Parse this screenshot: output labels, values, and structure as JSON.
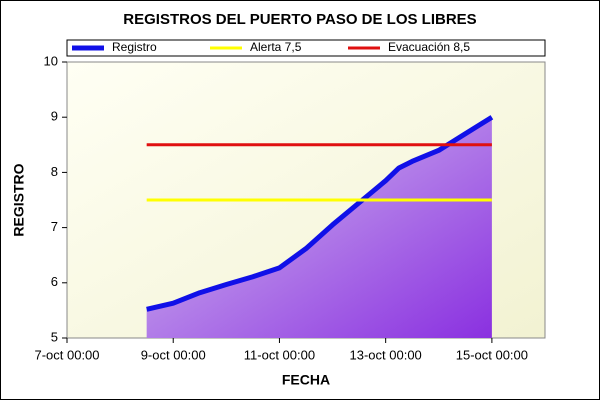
{
  "chart_data": {
    "type": "area-line",
    "title": "REGISTROS DEL PUERTO PASO DE LOS LIBRES",
    "x_label": "FECHA",
    "y_label": "REGISTRO",
    "x": [
      8.5,
      9,
      9.5,
      10,
      10.5,
      11,
      11.5,
      12,
      12.5,
      13,
      13.25,
      13.5,
      14,
      14.5,
      15
    ],
    "series": [
      {
        "name": "Registro",
        "color": "#1010e8",
        "fill": true,
        "values": [
          5.52,
          5.63,
          5.82,
          5.97,
          6.11,
          6.27,
          6.62,
          7.05,
          7.45,
          7.85,
          8.08,
          8.2,
          8.4,
          8.7,
          9.0
        ]
      },
      {
        "name": "Alerta 7,5",
        "color": "#ffff00",
        "values": [
          7.5,
          7.5,
          7.5,
          7.5,
          7.5,
          7.5,
          7.5,
          7.5,
          7.5,
          7.5,
          7.5,
          7.5,
          7.5,
          7.5,
          7.5
        ]
      },
      {
        "name": "Evacuación 8,5",
        "color": "#e01010",
        "values": [
          8.5,
          8.5,
          8.5,
          8.5,
          8.5,
          8.5,
          8.5,
          8.5,
          8.5,
          8.5,
          8.5,
          8.5,
          8.5,
          8.5,
          8.5
        ]
      }
    ],
    "xlim": [
      7,
      16
    ],
    "xticks": [
      {
        "value": 7,
        "label": "7-oct 00:00"
      },
      {
        "value": 9,
        "label": "9-oct 00:00"
      },
      {
        "value": 11,
        "label": "11-oct 00:00"
      },
      {
        "value": 13,
        "label": "13-oct 00:00"
      },
      {
        "value": 15,
        "label": "15-oct 00:00"
      }
    ],
    "ylim": [
      5,
      10
    ],
    "yticks": [
      5,
      6,
      7,
      8,
      9,
      10
    ],
    "legend": "top"
  }
}
